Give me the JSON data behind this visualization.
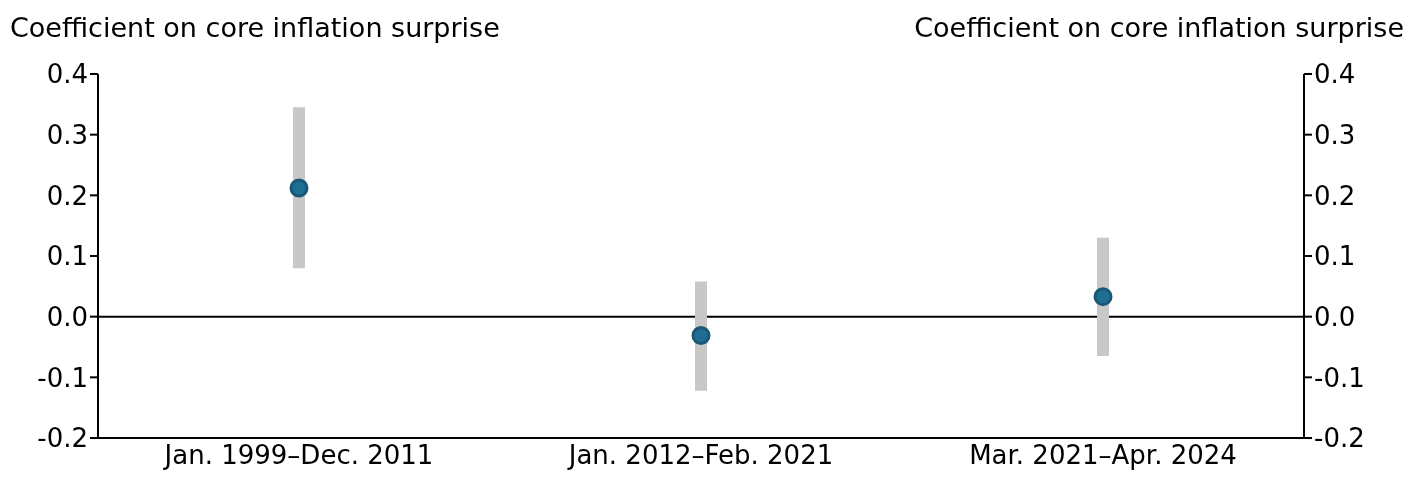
{
  "chart_data": {
    "type": "scatter",
    "ylabel": "Coefficient on core inflation surprise",
    "y2label": "Coefficient on core inflation surprise",
    "categories": [
      "Jan. 1999–Dec. 2011",
      "Jan. 2012–Feb. 2021",
      "Mar. 2021–Apr. 2024"
    ],
    "values": [
      0.212,
      -0.031,
      0.033
    ],
    "errors": [
      [
        0.08,
        0.345
      ],
      [
        -0.122,
        0.058
      ],
      [
        -0.065,
        0.13
      ]
    ],
    "color": "#1f6e94",
    "marker": "circle",
    "ylim": [
      -0.2,
      0.4
    ],
    "yticks": [
      {
        "value": -0.2,
        "label": "-0.2"
      },
      {
        "value": -0.1,
        "label": "-0.1"
      },
      {
        "value": 0,
        "label": "0.0"
      },
      {
        "value": 0.1,
        "label": "0.1"
      },
      {
        "value": 0.2,
        "label": "0.2"
      },
      {
        "value": 0.3,
        "label": "0.3"
      },
      {
        "value": 0.4,
        "label": "0.4"
      }
    ],
    "y2lim": [
      -0.2,
      0.4
    ],
    "y2ticks": [
      {
        "value": -0.2,
        "label": "-0.2"
      },
      {
        "value": -0.1,
        "label": "-0.1"
      },
      {
        "value": 0,
        "label": "0.0"
      },
      {
        "value": 0.1,
        "label": "0.1"
      },
      {
        "value": 0.2,
        "label": "0.2"
      },
      {
        "value": 0.3,
        "label": "0.3"
      },
      {
        "value": 0.4,
        "label": "0.4"
      }
    ],
    "ref_lines": [
      {
        "axis": "y",
        "value": 0,
        "color": "#000000"
      }
    ]
  }
}
